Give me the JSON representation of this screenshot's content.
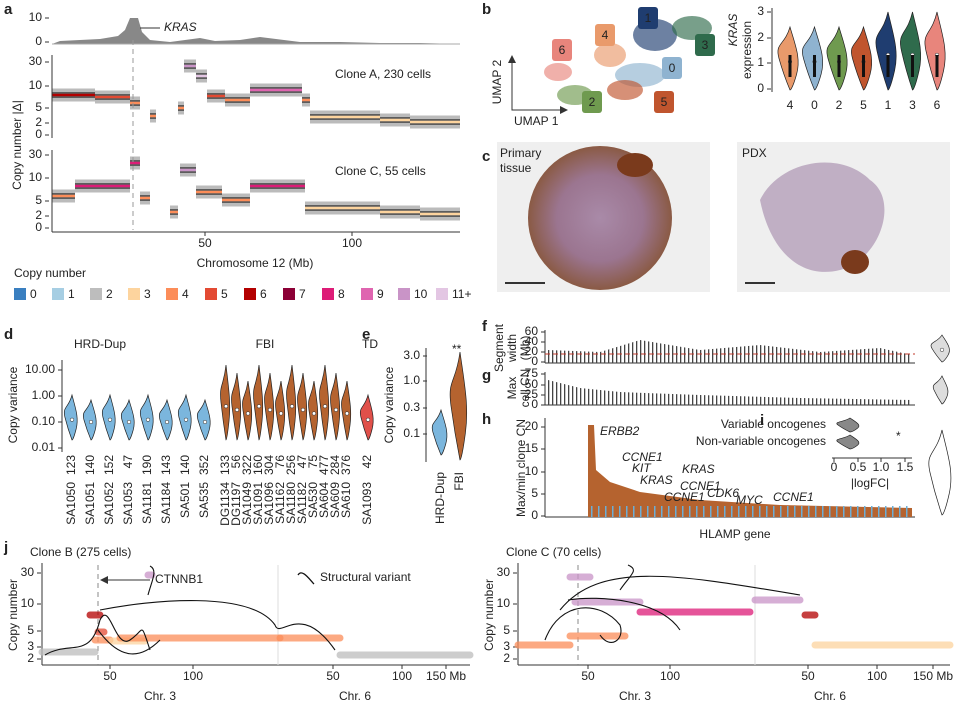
{
  "a": {
    "label": "a",
    "gene": "KRAS",
    "hist_ticks": [
      "10",
      "0"
    ],
    "y_label": "Copy number |Δ|",
    "y_ticks": [
      "30",
      "10",
      "5",
      "2",
      "0"
    ],
    "clone_top": "Clone A, 230 cells",
    "clone_bottom": "Clone C, 55 cells",
    "x_ticks": [
      "50",
      "100"
    ],
    "x_label": "Chromosome 12 (Mb)"
  },
  "legend": {
    "title": "Copy number",
    "items": [
      {
        "label": "0",
        "color": "#3a7fc0"
      },
      {
        "label": "1",
        "color": "#a6cee3"
      },
      {
        "label": "2",
        "color": "#bdbdbd"
      },
      {
        "label": "3",
        "color": "#fdd49e"
      },
      {
        "label": "4",
        "color": "#fc8d59"
      },
      {
        "label": "5",
        "color": "#e34a33"
      },
      {
        "label": "6",
        "color": "#b30000"
      },
      {
        "label": "7",
        "color": "#8c0036"
      },
      {
        "label": "8",
        "color": "#dd1c77"
      },
      {
        "label": "9",
        "color": "#df65b0"
      },
      {
        "label": "10",
        "color": "#c994c7"
      },
      {
        "label": "11+",
        "color": "#e3c6e3"
      }
    ]
  },
  "b": {
    "label": "b",
    "umap_y": "UMAP 2",
    "umap_x": "UMAP 1",
    "clusters": [
      {
        "label": "0",
        "color": "#8fb3d0"
      },
      {
        "label": "1",
        "color": "#1f3d70"
      },
      {
        "label": "2",
        "color": "#6f9a4f"
      },
      {
        "label": "3",
        "color": "#2f6b4c"
      },
      {
        "label": "4",
        "color": "#e99a6b"
      },
      {
        "label": "5",
        "color": "#c0552e"
      },
      {
        "label": "6",
        "color": "#e8857c"
      }
    ],
    "violin_y_gene": "KRAS",
    "violin_y_rest": "expression",
    "violin_y_ticks": [
      "3",
      "2",
      "1",
      "0"
    ],
    "violin_x": [
      "4",
      "0",
      "2",
      "5",
      "1",
      "3",
      "6"
    ]
  },
  "c": {
    "label": "c",
    "left": [
      "Primary",
      "tissue"
    ],
    "right": "PDX"
  },
  "d": {
    "label": "d",
    "y_label": "Copy variance",
    "y_ticks": [
      "10.00",
      "1.00",
      "0.10",
      "0.01"
    ],
    "groups": [
      {
        "name": "HRD-Dup",
        "color": "#7bb6dd",
        "samples": [
          {
            "id": "SA1050",
            "n": "123"
          },
          {
            "id": "SA1051",
            "n": "140"
          },
          {
            "id": "SA1052",
            "n": "152"
          },
          {
            "id": "SA1053",
            "n": "47"
          },
          {
            "id": "SA1181",
            "n": "190"
          },
          {
            "id": "SA1184",
            "n": "143"
          },
          {
            "id": "SA501",
            "n": "140"
          },
          {
            "id": "SA535",
            "n": "352"
          }
        ]
      },
      {
        "name": "FBI",
        "color": "#b5632f",
        "samples": [
          {
            "id": "DG1134",
            "n": "133"
          },
          {
            "id": "DG1197",
            "n": "56"
          },
          {
            "id": "SA1049",
            "n": "322"
          },
          {
            "id": "SA1091",
            "n": "160"
          },
          {
            "id": "SA1096",
            "n": "304"
          },
          {
            "id": "SA1162",
            "n": "76"
          },
          {
            "id": "SA1180",
            "n": "256"
          },
          {
            "id": "SA1182",
            "n": "47"
          },
          {
            "id": "SA530",
            "n": "75"
          },
          {
            "id": "SA604",
            "n": "477"
          },
          {
            "id": "SA609",
            "n": "284"
          },
          {
            "id": "SA610",
            "n": "376"
          }
        ]
      },
      {
        "name": "TD",
        "color": "#e0504a",
        "samples": [
          {
            "id": "SA1093",
            "n": "42"
          }
        ]
      }
    ]
  },
  "e": {
    "label": "e",
    "y_label": "Copy variance",
    "y_ticks": [
      "3.0",
      "1.0",
      "0.3",
      "0.1"
    ],
    "sig": "**",
    "x": [
      "HRD-Dup",
      "FBI"
    ]
  },
  "f": {
    "label": "f",
    "y_label": [
      "Segment",
      "width",
      "(Mb)"
    ],
    "y_ticks": [
      "60",
      "40",
      "20",
      "0"
    ]
  },
  "g": {
    "label": "g",
    "y_label": [
      "Max",
      "cell CN"
    ],
    "y_ticks": [
      "75",
      "50",
      "25",
      "0"
    ]
  },
  "h": {
    "label": "h",
    "y_label": "Max/min clone CN",
    "y_ticks": [
      "20",
      "15",
      "10",
      "5",
      "0"
    ],
    "genes": [
      "ERBB2",
      "CCNE1",
      "KIT",
      "KRAS",
      "KRAS",
      "CCNE1",
      "CCNE1",
      "CDK6",
      "MYC",
      "CCNE1"
    ],
    "x_label": "HLAMP gene"
  },
  "i": {
    "label": "i",
    "rows": [
      "Variable oncogenes",
      "Non-variable oncogenes"
    ],
    "sig": "*",
    "x_ticks": [
      "0",
      "0.5",
      "1.0",
      "1.5"
    ],
    "x_label": "|logFC|"
  },
  "j": {
    "label": "j",
    "left_title": "Clone B (275 cells)",
    "right_title": "Clone C (70 cells)",
    "y_label": "Copy number",
    "y_ticks": [
      "30",
      "10",
      "5",
      "3",
      "2"
    ],
    "x_ticks": [
      "50",
      "100",
      "50",
      "100",
      "150 Mb"
    ],
    "chr": [
      "Chr. 3",
      "Chr. 6"
    ],
    "gene": "CTNNB1",
    "sv": "Structural variant"
  }
}
